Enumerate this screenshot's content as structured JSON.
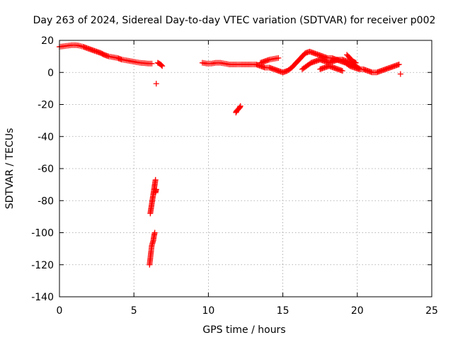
{
  "chart_data": {
    "type": "scatter",
    "title": "Day 263 of 2024, Sidereal Day-to-day VTEC variation (SDTVAR) for receiver p002",
    "xlabel": "GPS time / hours",
    "ylabel": "SDTVAR / TECUs",
    "xlim": [
      0,
      25
    ],
    "ylim": [
      -140,
      20
    ],
    "xticks": [
      0,
      5,
      10,
      15,
      20,
      25
    ],
    "yticks": [
      20,
      0,
      -20,
      -40,
      -60,
      -80,
      -100,
      -120,
      -140
    ],
    "grid": true,
    "marker": "+",
    "series_color": "#ff0000",
    "series": [
      {
        "name": "SDTVAR",
        "segments": [
          [
            [
              0.0,
              16
            ],
            [
              0.4,
              16.5
            ],
            [
              0.8,
              17
            ],
            [
              1.1,
              17
            ],
            [
              1.3,
              16.8
            ],
            [
              1.6,
              16
            ],
            [
              1.9,
              15
            ],
            [
              2.2,
              14
            ],
            [
              2.5,
              13
            ],
            [
              2.8,
              12
            ],
            [
              3.0,
              11
            ],
            [
              3.3,
              10
            ],
            [
              3.6,
              9.5
            ],
            [
              3.9,
              9
            ],
            [
              4.2,
              8
            ],
            [
              4.5,
              7.5
            ],
            [
              4.8,
              7
            ],
            [
              5.1,
              6.5
            ],
            [
              5.4,
              6
            ],
            [
              5.7,
              5.8
            ],
            [
              6.0,
              5.5
            ],
            [
              6.2,
              5.5
            ]
          ],
          [
            [
              6.6,
              6
            ],
            [
              6.8,
              5
            ],
            [
              6.9,
              4
            ]
          ],
          [
            [
              6.5,
              -7
            ]
          ],
          [
            [
              9.6,
              6
            ],
            [
              9.9,
              5.5
            ],
            [
              10.2,
              5.5
            ],
            [
              10.5,
              6
            ],
            [
              10.8,
              6
            ],
            [
              11.1,
              5.5
            ],
            [
              11.4,
              5
            ],
            [
              11.7,
              5
            ],
            [
              12.0,
              5
            ],
            [
              12.3,
              5
            ],
            [
              12.6,
              5
            ],
            [
              12.9,
              5
            ],
            [
              13.2,
              5
            ],
            [
              13.5,
              4
            ],
            [
              13.8,
              3
            ],
            [
              14.1,
              3
            ],
            [
              14.4,
              2
            ],
            [
              14.7,
              1
            ],
            [
              15.0,
              0
            ],
            [
              15.3,
              1
            ],
            [
              15.6,
              3
            ],
            [
              15.9,
              6
            ],
            [
              16.2,
              9
            ],
            [
              16.5,
              12
            ],
            [
              16.8,
              13
            ],
            [
              17.1,
              12
            ],
            [
              17.4,
              11
            ],
            [
              17.7,
              10
            ],
            [
              18.0,
              9
            ],
            [
              18.3,
              9
            ],
            [
              18.6,
              8
            ],
            [
              18.9,
              7
            ],
            [
              19.2,
              6
            ],
            [
              19.5,
              4
            ],
            [
              19.8,
              3
            ],
            [
              20.1,
              2
            ],
            [
              20.4,
              2
            ],
            [
              20.7,
              1
            ],
            [
              21.0,
              0
            ],
            [
              21.3,
              0
            ],
            [
              21.6,
              1
            ],
            [
              21.9,
              2
            ],
            [
              22.2,
              3
            ],
            [
              22.5,
              4
            ],
            [
              22.8,
              5
            ]
          ],
          [
            [
              13.5,
              6
            ],
            [
              13.8,
              7
            ],
            [
              14.1,
              8
            ],
            [
              14.4,
              8.5
            ],
            [
              14.7,
              9
            ]
          ],
          [
            [
              16.3,
              2
            ],
            [
              16.6,
              4
            ],
            [
              16.9,
              6
            ],
            [
              17.2,
              7
            ],
            [
              17.5,
              8
            ],
            [
              17.8,
              7
            ],
            [
              18.1,
              6
            ],
            [
              18.4,
              7
            ],
            [
              18.7,
              8
            ],
            [
              19.0,
              8
            ],
            [
              19.3,
              7
            ],
            [
              19.6,
              6
            ],
            [
              19.9,
              4
            ],
            [
              20.2,
              2
            ]
          ],
          [
            [
              17.5,
              2
            ],
            [
              17.8,
              3
            ],
            [
              18.1,
              4
            ],
            [
              18.4,
              3
            ],
            [
              18.7,
              2
            ],
            [
              19.0,
              1
            ]
          ],
          [
            [
              19.3,
              11
            ],
            [
              19.5,
              9
            ],
            [
              19.7,
              7
            ],
            [
              19.9,
              6
            ]
          ],
          [
            [
              11.85,
              -25
            ],
            [
              11.9,
              -24
            ],
            [
              12.0,
              -23
            ],
            [
              12.1,
              -22
            ],
            [
              12.15,
              -21
            ]
          ],
          [
            [
              6.1,
              -88
            ],
            [
              6.15,
              -85
            ],
            [
              6.2,
              -82
            ],
            [
              6.25,
              -79
            ],
            [
              6.3,
              -76
            ],
            [
              6.35,
              -73
            ],
            [
              6.4,
              -70
            ],
            [
              6.45,
              -67
            ]
          ],
          [
            [
              6.45,
              -75
            ],
            [
              6.5,
              -73
            ]
          ],
          [
            [
              6.05,
              -120
            ],
            [
              6.1,
              -116
            ],
            [
              6.15,
              -112
            ],
            [
              6.2,
              -108
            ],
            [
              6.3,
              -105
            ],
            [
              6.35,
              -102
            ],
            [
              6.4,
              -100
            ]
          ],
          [
            [
              22.9,
              -1
            ]
          ]
        ]
      }
    ]
  }
}
